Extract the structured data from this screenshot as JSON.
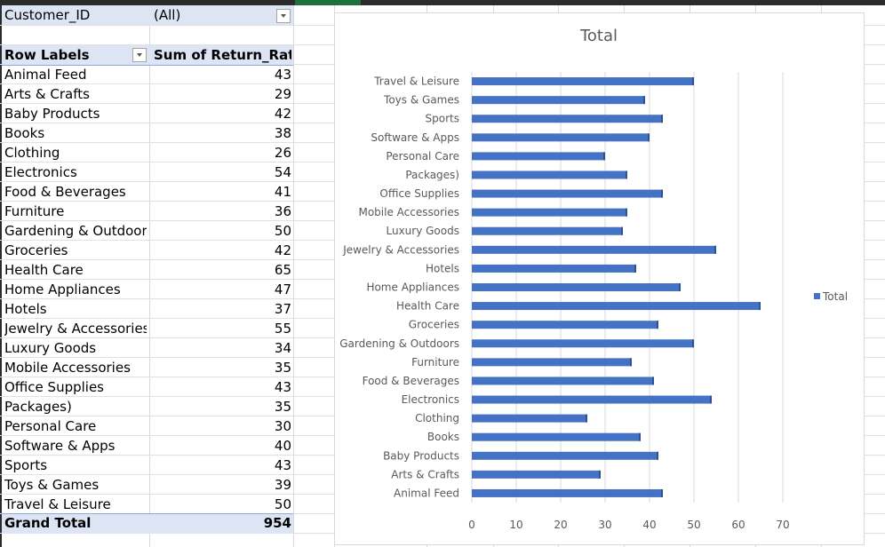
{
  "pivot": {
    "filter": {
      "field": "Customer_ID",
      "value": "(All)"
    },
    "header": {
      "row_labels": "Row Labels",
      "sum_label": "Sum of Return_Rate"
    },
    "rows": [
      {
        "label": "Animal Feed",
        "value": "43"
      },
      {
        "label": "Arts & Crafts",
        "value": "29"
      },
      {
        "label": "Baby Products",
        "value": "42"
      },
      {
        "label": "Books",
        "value": "38"
      },
      {
        "label": "Clothing",
        "value": "26"
      },
      {
        "label": "Electronics",
        "value": "54"
      },
      {
        "label": "Food & Beverages",
        "value": "41"
      },
      {
        "label": "Furniture",
        "value": "36"
      },
      {
        "label": "Gardening & Outdoors",
        "value": "50"
      },
      {
        "label": "Groceries",
        "value": "42"
      },
      {
        "label": "Health Care",
        "value": "65"
      },
      {
        "label": "Home Appliances",
        "value": "47"
      },
      {
        "label": "Hotels",
        "value": "37"
      },
      {
        "label": "Jewelry & Accessories",
        "value": "55"
      },
      {
        "label": "Luxury Goods",
        "value": "34"
      },
      {
        "label": "Mobile Accessories",
        "value": "35"
      },
      {
        "label": "Office Supplies",
        "value": "43"
      },
      {
        "label": "Packages)",
        "value": "35"
      },
      {
        "label": "Personal Care",
        "value": "30"
      },
      {
        "label": "Software & Apps",
        "value": "40"
      },
      {
        "label": "Sports",
        "value": "43"
      },
      {
        "label": "Toys & Games",
        "value": "39"
      },
      {
        "label": "Travel & Leisure",
        "value": "50"
      }
    ],
    "grand_total": {
      "label": "Grand Total",
      "value": "954"
    }
  },
  "chart_data": {
    "type": "bar",
    "orientation": "horizontal",
    "title": "Total",
    "categories": [
      "Animal Feed",
      "Arts & Crafts",
      "Baby Products",
      "Books",
      "Clothing",
      "Electronics",
      "Food & Beverages",
      "Furniture",
      "Gardening & Outdoors",
      "Groceries",
      "Health Care",
      "Home Appliances",
      "Hotels",
      "Jewelry & Accessories",
      "Luxury Goods",
      "Mobile Accessories",
      "Office Supplies",
      "Packages)",
      "Personal Care",
      "Software & Apps",
      "Sports",
      "Toys & Games",
      "Travel & Leisure"
    ],
    "series": [
      {
        "name": "Total",
        "values": [
          43,
          29,
          42,
          38,
          26,
          54,
          41,
          36,
          50,
          42,
          65,
          47,
          37,
          55,
          34,
          35,
          43,
          35,
          30,
          40,
          43,
          39,
          50
        ],
        "color": "#4472c4"
      }
    ],
    "xlim": [
      0,
      70
    ],
    "x_ticks": [
      "0",
      "10",
      "20",
      "30",
      "40",
      "50",
      "60",
      "70"
    ],
    "grid": true,
    "legend": "right"
  }
}
